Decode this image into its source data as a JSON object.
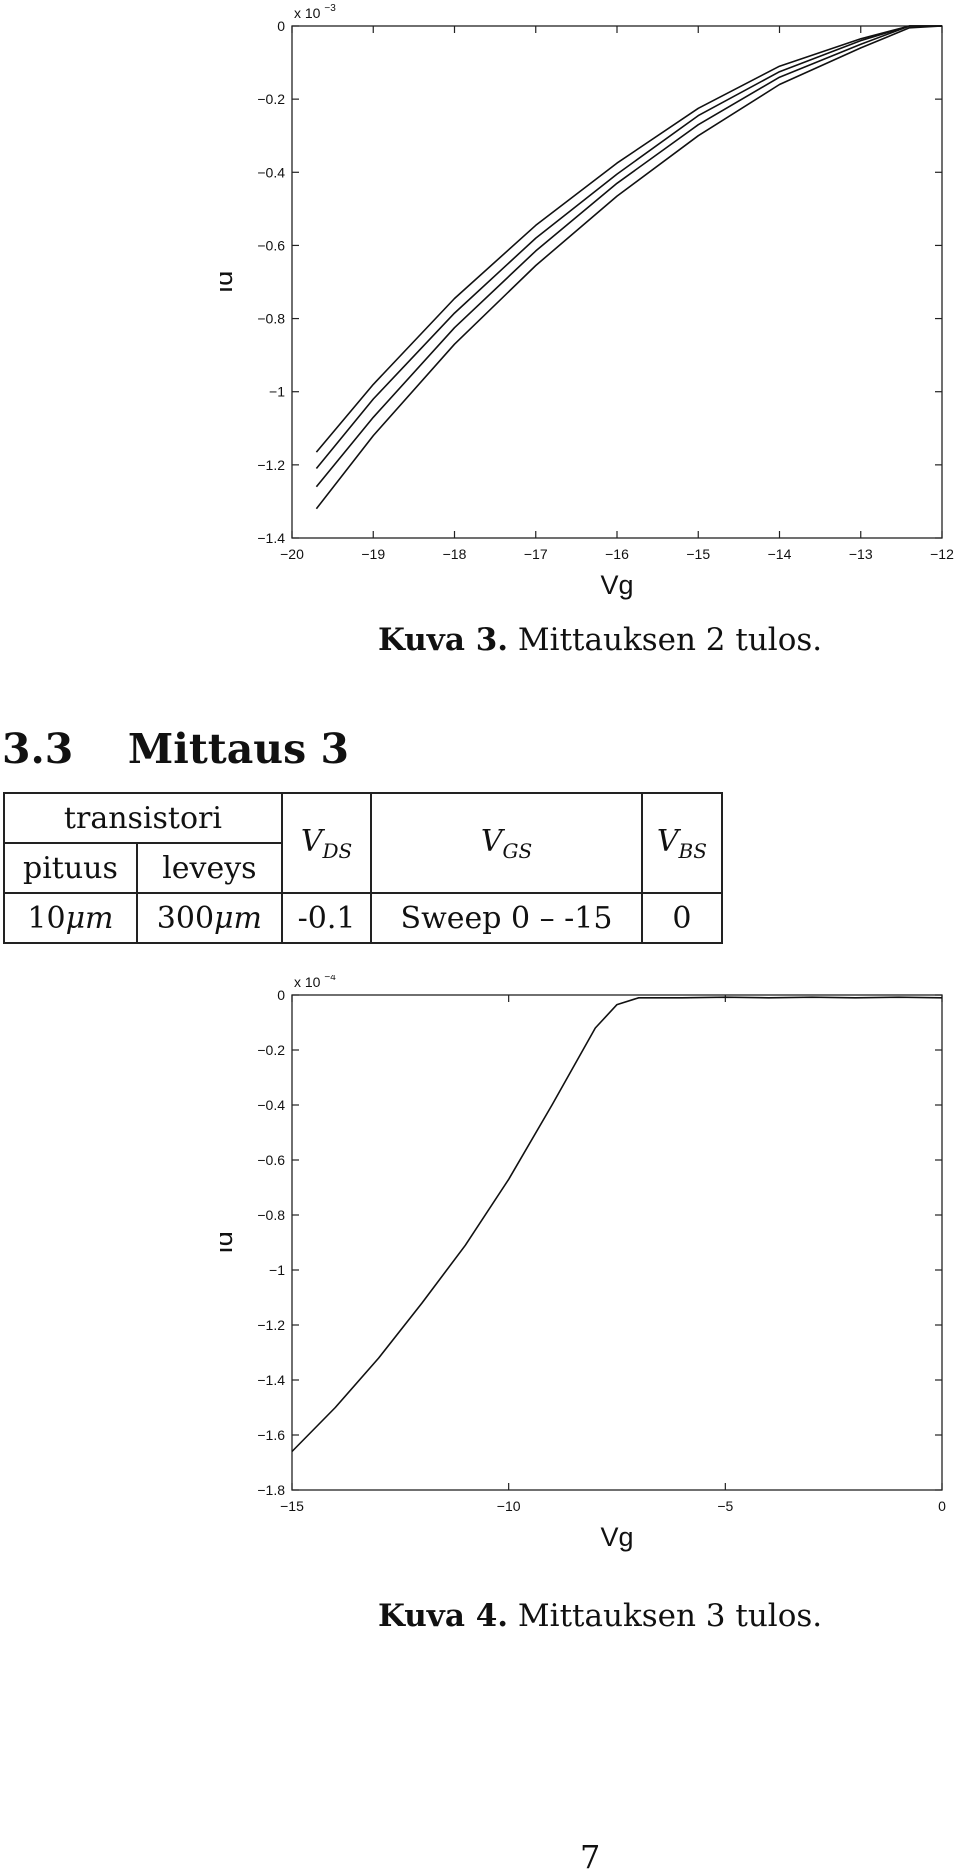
{
  "figure3": {
    "caption_label": "Kuva 3.",
    "caption_text": "Mittauksen 2 tulos.",
    "chart_data": {
      "type": "line",
      "xlabel": "Vg",
      "ylabel": "Id",
      "exponent_label": "x 10",
      "exponent_power": "−3",
      "xlim": [
        -20,
        -12
      ],
      "ylim": [
        -1.4,
        0
      ],
      "xticks": [
        "−20",
        "−19",
        "−18",
        "−17",
        "−16",
        "−15",
        "−14",
        "−13",
        "−12"
      ],
      "yticks": [
        "0",
        "−0.2",
        "−0.4",
        "−0.6",
        "−0.8",
        "−1",
        "−1.2",
        "−1.4"
      ],
      "series": [
        {
          "x": [
            -19.7,
            -19,
            -18,
            -17,
            -16,
            -15,
            -14,
            -13,
            -12.4,
            -12
          ],
          "y": [
            -1.165,
            -0.98,
            -0.745,
            -0.545,
            -0.375,
            -0.225,
            -0.11,
            -0.035,
            0,
            0
          ]
        },
        {
          "x": [
            -19.7,
            -19,
            -18,
            -17,
            -16,
            -15,
            -14,
            -13,
            -12.4,
            -12
          ],
          "y": [
            -1.21,
            -1.02,
            -0.785,
            -0.58,
            -0.405,
            -0.245,
            -0.125,
            -0.04,
            0,
            0
          ]
        },
        {
          "x": [
            -19.7,
            -19,
            -18,
            -17,
            -16,
            -15,
            -14,
            -13,
            -12.4,
            -12
          ],
          "y": [
            -1.26,
            -1.07,
            -0.825,
            -0.615,
            -0.43,
            -0.27,
            -0.14,
            -0.05,
            0,
            0
          ]
        },
        {
          "x": [
            -19.7,
            -19,
            -18,
            -17,
            -16,
            -15,
            -14,
            -13,
            -12.4,
            -12
          ],
          "y": [
            -1.32,
            -1.12,
            -0.87,
            -0.655,
            -0.465,
            -0.3,
            -0.16,
            -0.06,
            -0.005,
            0
          ]
        }
      ]
    }
  },
  "section": {
    "number": "3.3",
    "title": "Mittaus 3"
  },
  "table": {
    "header_group": "transistori",
    "col_length": "pituus",
    "col_width": "leveys",
    "vds_base": "V",
    "vds_sub": "DS",
    "vgs_base": "V",
    "vgs_sub": "GS",
    "vbs_base": "V",
    "vbs_sub": "BS",
    "row": {
      "length_num": "10",
      "length_unit": "μm",
      "width_num": "300",
      "width_unit": "μm",
      "vds": "-0.1",
      "vgs": "Sweep 0 – -15",
      "vbs": "0"
    }
  },
  "figure4": {
    "caption_label": "Kuva 4.",
    "caption_text": "Mittauksen 3 tulos.",
    "chart_data": {
      "type": "line",
      "xlabel": "Vg",
      "ylabel": "Id",
      "exponent_label": "x 10",
      "exponent_power": "−4",
      "xlim": [
        -15,
        0
      ],
      "ylim": [
        -1.8,
        0
      ],
      "xticks": [
        "−15",
        "−10",
        "−5",
        "0"
      ],
      "yticks": [
        "0",
        "−0.2",
        "−0.4",
        "−0.6",
        "−0.8",
        "−1",
        "−1.2",
        "−1.4",
        "−1.6",
        "−1.8"
      ],
      "series": [
        {
          "x": [
            -15,
            -14,
            -13,
            -12,
            -11,
            -10,
            -9,
            -8,
            -7.5,
            -7,
            -6,
            -5,
            -4,
            -3,
            -2,
            -1,
            0
          ],
          "y": [
            -1.66,
            -1.5,
            -1.32,
            -1.12,
            -0.91,
            -0.67,
            -0.4,
            -0.12,
            -0.035,
            -0.01,
            -0.01,
            -0.008,
            -0.01,
            -0.008,
            -0.01,
            -0.008,
            -0.01
          ]
        }
      ]
    }
  },
  "page_number": "7"
}
